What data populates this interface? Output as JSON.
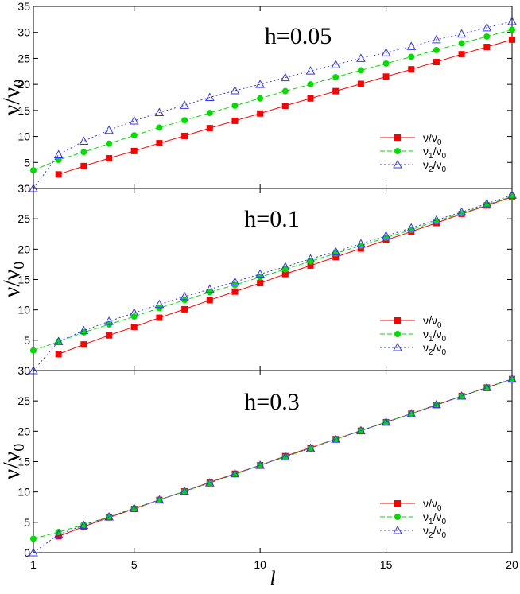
{
  "chart_data": [
    {
      "type": "line",
      "annotation": "h=0.05",
      "ylabel": "ν/ν",
      "ylabel_sub": "0",
      "ylim": [
        0,
        35
      ],
      "yticks": [
        5,
        10,
        15,
        20,
        25,
        30,
        35
      ],
      "ytick_labels": [
        "5",
        "10",
        "15",
        "20",
        "25",
        "30",
        "35"
      ],
      "xlim": [
        1,
        20
      ],
      "xticks": [
        1,
        5,
        10,
        15,
        20
      ],
      "show_xtick_labels": false,
      "show_xlabel": false,
      "legend_position": "right",
      "series": [
        {
          "name": "ν/ν0",
          "legend_main": "ν/ν",
          "legend_sub": "0",
          "color": "#ff0000",
          "marker": "square",
          "dash": "solid",
          "x": [
            2,
            3,
            4,
            5,
            6,
            7,
            8,
            9,
            10,
            11,
            12,
            13,
            14,
            15,
            16,
            17,
            18,
            19,
            20
          ],
          "y": [
            2.7,
            4.3,
            5.8,
            7.2,
            8.7,
            10.1,
            11.6,
            13.0,
            14.4,
            15.9,
            17.3,
            18.7,
            20.1,
            21.5,
            22.9,
            24.3,
            25.8,
            27.2,
            28.6
          ]
        },
        {
          "name": "ν1/ν0",
          "legend_main": "ν",
          "legend_mid": "1",
          "legend_after": "/ν",
          "legend_sub": "0",
          "color": "#00dd00",
          "marker": "circle",
          "dash": "6,3",
          "x": [
            1,
            2,
            3,
            4,
            5,
            6,
            7,
            8,
            9,
            10,
            11,
            12,
            13,
            14,
            15,
            16,
            17,
            18,
            19,
            20
          ],
          "y": [
            3.5,
            5.5,
            7.0,
            8.6,
            10.2,
            11.7,
            13.1,
            14.5,
            15.9,
            17.3,
            18.7,
            20.0,
            21.4,
            22.7,
            24.0,
            25.3,
            26.6,
            27.9,
            29.2,
            30.5
          ]
        },
        {
          "name": "ν2/ν0",
          "legend_main": "ν",
          "legend_mid": "2",
          "legend_after": "/ν",
          "legend_sub": "0",
          "color": "#3333ff",
          "marker": "triangle",
          "dash": "2,3",
          "x": [
            1,
            2,
            3,
            4,
            5,
            6,
            7,
            8,
            9,
            10,
            11,
            12,
            13,
            14,
            15,
            16,
            17,
            18,
            19,
            20
          ],
          "y": [
            0.0,
            6.5,
            9.1,
            11.2,
            13.0,
            14.6,
            16.0,
            17.5,
            18.8,
            20.0,
            21.3,
            22.6,
            23.8,
            25.0,
            26.1,
            27.3,
            28.6,
            29.7,
            30.9,
            32.1
          ]
        }
      ]
    },
    {
      "type": "line",
      "annotation": "h=0.1",
      "ylabel": "ν/ν",
      "ylabel_sub": "0",
      "ylim": [
        0,
        30
      ],
      "yticks": [
        5,
        10,
        15,
        20,
        25,
        30
      ],
      "ytick_labels": [
        "5",
        "10",
        "15",
        "20",
        "25",
        "30"
      ],
      "xlim": [
        1,
        20
      ],
      "xticks": [
        1,
        5,
        10,
        15,
        20
      ],
      "show_xtick_labels": false,
      "show_xlabel": false,
      "legend_position": "right",
      "series": [
        {
          "name": "ν/ν0",
          "legend_main": "ν/ν",
          "legend_sub": "0",
          "color": "#ff0000",
          "marker": "square",
          "dash": "solid",
          "x": [
            2,
            3,
            4,
            5,
            6,
            7,
            8,
            9,
            10,
            11,
            12,
            13,
            14,
            15,
            16,
            17,
            18,
            19,
            20
          ],
          "y": [
            2.7,
            4.3,
            5.8,
            7.2,
            8.7,
            10.1,
            11.6,
            13.0,
            14.4,
            15.9,
            17.3,
            18.7,
            20.1,
            21.5,
            22.9,
            24.3,
            25.8,
            27.2,
            28.6
          ]
        },
        {
          "name": "ν1/ν0",
          "legend_main": "ν",
          "legend_mid": "1",
          "legend_after": "/ν",
          "legend_sub": "0",
          "color": "#00dd00",
          "marker": "circle",
          "dash": "6,3",
          "x": [
            1,
            2,
            3,
            4,
            5,
            6,
            7,
            8,
            9,
            10,
            11,
            12,
            13,
            14,
            15,
            16,
            17,
            18,
            19,
            20
          ],
          "y": [
            3.3,
            4.8,
            6.3,
            7.6,
            8.9,
            10.3,
            11.6,
            12.9,
            14.1,
            15.4,
            16.7,
            18.0,
            19.3,
            20.6,
            21.9,
            23.2,
            24.6,
            25.9,
            27.3,
            28.7
          ]
        },
        {
          "name": "ν2/ν0",
          "legend_main": "ν",
          "legend_mid": "2",
          "legend_after": "/ν",
          "legend_sub": "0",
          "color": "#3333ff",
          "marker": "triangle",
          "dash": "2,3",
          "x": [
            1,
            2,
            3,
            4,
            5,
            6,
            7,
            8,
            9,
            10,
            11,
            12,
            13,
            14,
            15,
            16,
            17,
            18,
            19,
            20
          ],
          "y": [
            0.0,
            4.8,
            6.6,
            8.1,
            9.5,
            10.9,
            12.2,
            13.4,
            14.6,
            15.9,
            17.1,
            18.4,
            19.6,
            20.9,
            22.2,
            23.5,
            24.8,
            26.1,
            27.5,
            28.9
          ]
        }
      ]
    },
    {
      "type": "line",
      "annotation": "h=0.3",
      "ylabel": "ν/ν",
      "ylabel_sub": "0",
      "ylim": [
        0,
        30
      ],
      "yticks": [
        0,
        5,
        10,
        15,
        20,
        25,
        30
      ],
      "ytick_labels": [
        "0",
        "5",
        "10",
        "15",
        "20",
        "25",
        "30"
      ],
      "xlim": [
        1,
        20
      ],
      "xticks": [
        1,
        5,
        10,
        15,
        20
      ],
      "xtick_labels": [
        "1",
        "5",
        "10",
        "15",
        "20"
      ],
      "show_xtick_labels": true,
      "show_xlabel": true,
      "xlabel": "l",
      "legend_position": "right",
      "series": [
        {
          "name": "ν/ν0",
          "legend_main": "ν/ν",
          "legend_sub": "0",
          "color": "#ff0000",
          "marker": "square",
          "dash": "solid",
          "x": [
            2,
            3,
            4,
            5,
            6,
            7,
            8,
            9,
            10,
            11,
            12,
            13,
            14,
            15,
            16,
            17,
            18,
            19,
            20
          ],
          "y": [
            2.7,
            4.3,
            5.8,
            7.2,
            8.7,
            10.1,
            11.6,
            13.0,
            14.4,
            15.9,
            17.3,
            18.7,
            20.1,
            21.5,
            22.9,
            24.3,
            25.8,
            27.2,
            28.6
          ]
        },
        {
          "name": "ν1/ν0",
          "legend_main": "ν",
          "legend_mid": "1",
          "legend_after": "/ν",
          "legend_sub": "0",
          "color": "#00dd00",
          "marker": "circle",
          "dash": "6,3",
          "x": [
            1,
            2,
            3,
            4,
            5,
            6,
            7,
            8,
            9,
            10,
            11,
            12,
            13,
            14,
            15,
            16,
            17,
            18,
            19,
            20
          ],
          "y": [
            2.3,
            3.4,
            4.6,
            5.9,
            7.3,
            8.7,
            10.1,
            11.5,
            12.9,
            14.4,
            15.8,
            17.2,
            18.7,
            20.1,
            21.5,
            22.9,
            24.4,
            25.8,
            27.2,
            28.6
          ]
        },
        {
          "name": "ν2/ν0",
          "legend_main": "ν",
          "legend_mid": "2",
          "legend_after": "/ν",
          "legend_sub": "0",
          "color": "#3333ff",
          "marker": "triangle",
          "dash": "2,3",
          "x": [
            1,
            2,
            3,
            4,
            5,
            6,
            7,
            8,
            9,
            10,
            11,
            12,
            13,
            14,
            15,
            16,
            17,
            18,
            19,
            20
          ],
          "y": [
            0.0,
            3.0,
            4.5,
            5.9,
            7.3,
            8.7,
            10.1,
            11.5,
            13.0,
            14.4,
            15.8,
            17.2,
            18.7,
            20.1,
            21.5,
            22.9,
            24.4,
            25.8,
            27.2,
            28.6
          ]
        }
      ]
    }
  ]
}
